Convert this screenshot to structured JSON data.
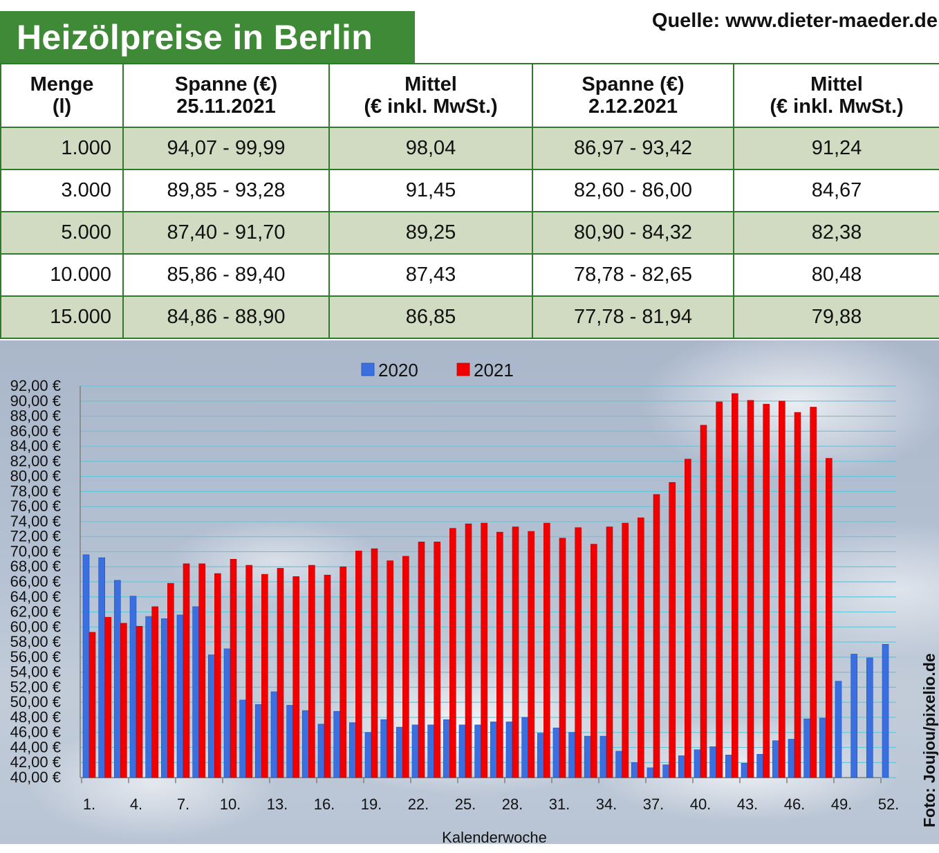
{
  "header": {
    "title": "Heizölpreise in Berlin",
    "source": "Quelle: www.dieter-maeder.de"
  },
  "table": {
    "headers": [
      {
        "l1": "Menge",
        "l2": "(l)"
      },
      {
        "l1": "Spanne (€)",
        "l2": "25.11.2021"
      },
      {
        "l1": "Mittel",
        "l2": "(€ inkl. MwSt.)"
      },
      {
        "l1": "Spanne (€)",
        "l2": "2.12.2021"
      },
      {
        "l1": "Mittel",
        "l2": "(€ inkl. MwSt.)"
      }
    ],
    "rows": [
      [
        "1.000",
        "94,07 - 99,99",
        "98,04",
        "86,97 - 93,42",
        "91,24"
      ],
      [
        "3.000",
        "89,85 - 93,28",
        "91,45",
        "82,60 - 86,00",
        "84,67"
      ],
      [
        "5.000",
        "87,40 - 91,70",
        "89,25",
        "80,90 - 84,32",
        "82,38"
      ],
      [
        "10.000",
        "85,86 - 89,40",
        "87,43",
        "78,78 - 82,65",
        "80,48"
      ],
      [
        "15.000",
        "84,86 - 88,90",
        "86,85",
        "77,78 - 81,94",
        "79,88"
      ]
    ]
  },
  "photo_credit": "Foto: Joujou/pixelio.de",
  "colors": {
    "title_bg": "#3e8a36",
    "table_border": "#2f7a2a",
    "row_alt": "#d1dbc2",
    "series_2020": "#3b6fe0",
    "series_2021": "#f00000",
    "gridline": "#5fc8dc"
  },
  "chart_data": {
    "type": "bar",
    "xlabel": "Kalenderwoche",
    "ylabel": "",
    "ylim": [
      40,
      92
    ],
    "y_ticks": [
      "40,00 €",
      "42,00 €",
      "44,00 €",
      "46,00 €",
      "48,00 €",
      "50,00 €",
      "52,00 €",
      "54,00 €",
      "56,00 €",
      "58,00 €",
      "60,00 €",
      "62,00 €",
      "64,00 €",
      "66,00 €",
      "68,00 €",
      "70,00 €",
      "72,00 €",
      "74,00 €",
      "76,00 €",
      "78,00 €",
      "80,00 €",
      "82,00 €",
      "84,00 €",
      "86,00 €",
      "88,00 €",
      "90,00 €",
      "92,00 €"
    ],
    "x_ticks": [
      "1.",
      "4.",
      "7.",
      "10.",
      "13.",
      "16.",
      "19.",
      "22.",
      "25.",
      "28.",
      "31.",
      "34.",
      "37.",
      "40.",
      "43.",
      "46.",
      "49.",
      "52."
    ],
    "legend_position": "top-center",
    "grid": true,
    "categories": [
      1,
      2,
      3,
      4,
      5,
      6,
      7,
      8,
      9,
      10,
      11,
      12,
      13,
      14,
      15,
      16,
      17,
      18,
      19,
      20,
      21,
      22,
      23,
      24,
      25,
      26,
      27,
      28,
      29,
      30,
      31,
      32,
      33,
      34,
      35,
      36,
      37,
      38,
      39,
      40,
      41,
      42,
      43,
      44,
      45,
      46,
      47,
      48,
      49,
      50,
      51,
      52
    ],
    "series": [
      {
        "name": "2020",
        "color": "#3b6fe0",
        "values": [
          69.6,
          69.2,
          66.2,
          64.1,
          61.4,
          61.1,
          61.6,
          62.7,
          56.3,
          57.1,
          50.3,
          49.7,
          51.4,
          49.6,
          48.9,
          47.1,
          48.8,
          47.3,
          46.0,
          47.7,
          46.7,
          47.0,
          47.0,
          47.7,
          47.0,
          47.0,
          47.4,
          47.4,
          48.0,
          45.9,
          46.6,
          46.0,
          45.5,
          45.5,
          43.5,
          42.0,
          41.3,
          41.7,
          42.9,
          43.7,
          44.1,
          43.0,
          41.9,
          43.1,
          44.9,
          45.1,
          47.8,
          47.9,
          52.8,
          56.4,
          55.9,
          57.7
        ]
      },
      {
        "name": "2021",
        "color": "#f00000",
        "values": [
          59.3,
          61.3,
          60.5,
          60.1,
          62.7,
          65.8,
          68.4,
          68.4,
          67.1,
          69.0,
          68.2,
          67.0,
          67.8,
          66.7,
          68.2,
          66.9,
          68.0,
          70.1,
          70.4,
          68.8,
          69.4,
          71.3,
          71.3,
          73.1,
          73.7,
          73.8,
          72.6,
          73.3,
          72.7,
          73.8,
          71.8,
          73.2,
          71.0,
          73.3,
          73.8,
          74.5,
          77.6,
          79.2,
          82.3,
          86.8,
          89.9,
          91.0,
          90.1,
          89.6,
          90.0,
          88.5,
          89.2,
          82.4,
          null,
          null,
          null,
          null
        ]
      }
    ]
  }
}
